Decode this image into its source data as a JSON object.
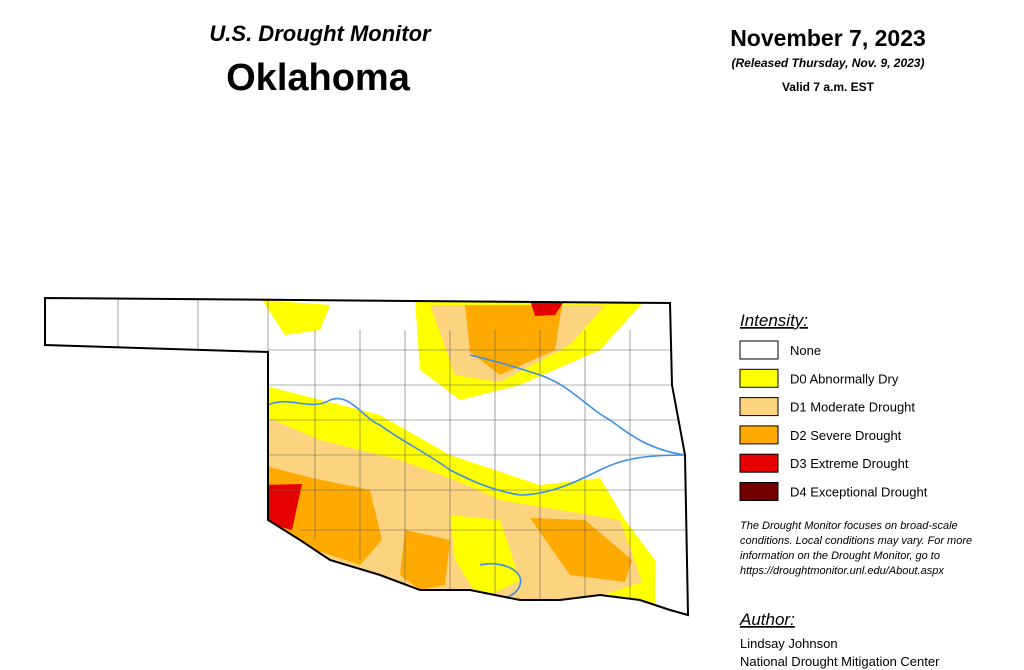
{
  "header": {
    "title": "U.S. Drought Monitor",
    "state": "Oklahoma",
    "date": "November 7, 2023",
    "released": "(Released Thursday, Nov. 9, 2023)",
    "valid": "Valid 7 a.m. EST"
  },
  "legend": {
    "title": "Intensity:",
    "items": [
      {
        "label": "None",
        "color": "#ffffff"
      },
      {
        "label": "D0 Abnormally Dry",
        "color": "#ffff00"
      },
      {
        "label": "D1 Moderate Drought",
        "color": "#fcd37f"
      },
      {
        "label": "D2 Severe Drought",
        "color": "#ffaa00"
      },
      {
        "label": "D3 Extreme Drought",
        "color": "#e60000"
      },
      {
        "label": "D4 Exceptional Drought",
        "color": "#730000"
      }
    ]
  },
  "note": [
    "The Drought Monitor focuses on broad-scale",
    "conditions. Local conditions may vary. For more",
    "information on the Drought Monitor, go to",
    "https://droughtmonitor.unl.edu/About.aspx"
  ],
  "author": {
    "heading": "Author:",
    "name": "Lindsay Johnson",
    "organization": "National Drought Mitigation Center"
  }
}
